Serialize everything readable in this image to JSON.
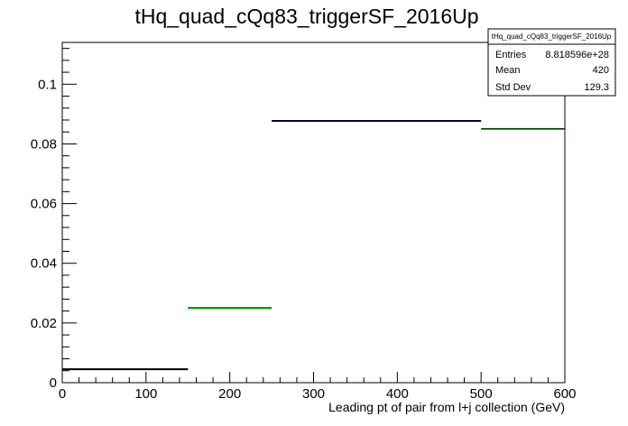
{
  "chart_data": {
    "type": "bar",
    "title": "tHq_quad_cQq83_triggerSF_2016Up",
    "xlabel": "Leading pt of pair from l+j collection (GeV)",
    "ylabel": "",
    "xlim": [
      0,
      600
    ],
    "ylim": [
      0,
      0.114
    ],
    "x_ticks": [
      "0",
      "100",
      "200",
      "300",
      "400",
      "500",
      "600"
    ],
    "y_ticks": [
      "0",
      "0.02",
      "0.04",
      "0.06",
      "0.08",
      "0.1"
    ],
    "grid": false,
    "legend": "none",
    "bins": [
      {
        "x_low": 0,
        "x_high": 150,
        "value": 0.0045,
        "color": "#000000"
      },
      {
        "x_low": 150,
        "x_high": 250,
        "value": 0.025,
        "color": "#00aa00"
      },
      {
        "x_low": 250,
        "x_high": 500,
        "value": 0.0877,
        "color": "#000080"
      },
      {
        "x_low": 500,
        "x_high": 600,
        "value": 0.085,
        "color": "#00aa00"
      }
    ],
    "stats_box": {
      "title": "tHq_quad_cQq83_triggerSF_2016Up",
      "rows": [
        {
          "label": "Entries",
          "value": "8.818596e+28"
        },
        {
          "label": "Mean",
          "value": "420"
        },
        {
          "label": "Std Dev",
          "value": "129.3"
        }
      ]
    }
  }
}
